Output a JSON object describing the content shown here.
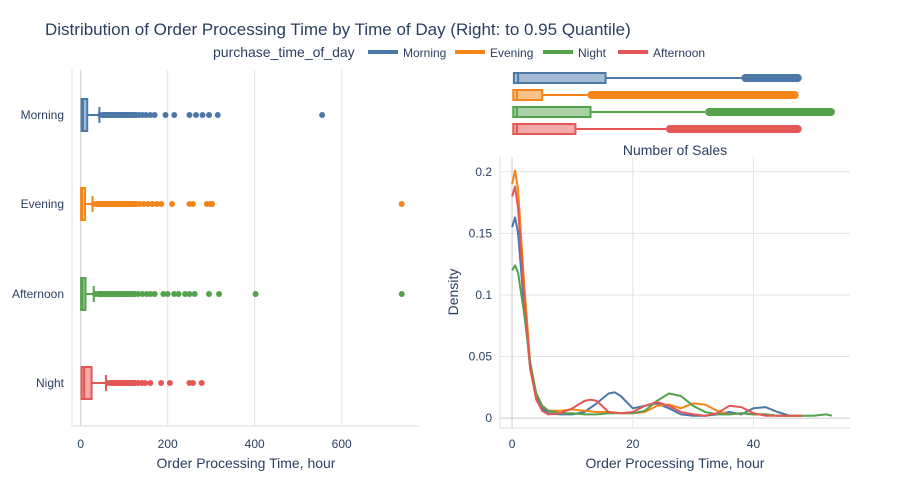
{
  "title": "Distribution of Order Processing Time by Time of Day (Right: to 0.95 Quantile)",
  "legend": {
    "title": "purchase_time_of_day",
    "items": [
      {
        "name": "Morning",
        "color": "#4c78a8"
      },
      {
        "name": "Evening",
        "color": "#f58518"
      },
      {
        "name": "Night",
        "color": "#54a24b"
      },
      {
        "name": "Afternoon",
        "color": "#e45756"
      }
    ]
  },
  "chart_data": [
    {
      "type": "box",
      "orientation": "horizontal",
      "xlabel": "Order Processing Time, hour",
      "ylabel": "",
      "xlim": [
        -20,
        780
      ],
      "xticks": [
        0,
        200,
        400,
        600
      ],
      "categories": [
        "Morning",
        "Evening",
        "Afternoon",
        "Night"
      ],
      "series": [
        {
          "name": "Morning",
          "color": "#4c78a8",
          "q1": 2,
          "median": 5,
          "q3": 15,
          "whisker_high": 43,
          "outliers": [
            45,
            52,
            60,
            68,
            75,
            82,
            90,
            98,
            105,
            112,
            120,
            128,
            135,
            142,
            150,
            160,
            170,
            195,
            215,
            250,
            265,
            280,
            295,
            315,
            555
          ]
        },
        {
          "name": "Evening",
          "color": "#f58518",
          "q1": 1,
          "median": 3,
          "q3": 10,
          "whisker_high": 27,
          "outliers": [
            30,
            38,
            45,
            55,
            65,
            75,
            85,
            95,
            105,
            115,
            125,
            135,
            145,
            155,
            165,
            175,
            185,
            210,
            250,
            258,
            290,
            298,
            302,
            738
          ]
        },
        {
          "name": "Afternoon",
          "color": "#54a24b",
          "q1": 1,
          "median": 4,
          "q3": 11,
          "whisker_high": 30,
          "outliers": [
            33,
            42,
            52,
            62,
            72,
            82,
            92,
            102,
            112,
            122,
            132,
            142,
            152,
            160,
            170,
            190,
            200,
            215,
            225,
            240,
            250,
            262,
            295,
            318,
            402,
            738
          ]
        },
        {
          "name": "Night",
          "color": "#e45756",
          "q1": 2,
          "median": 8,
          "q3": 25,
          "whisker_high": 58,
          "outliers": [
            62,
            70,
            78,
            85,
            92,
            100,
            108,
            116,
            124,
            132,
            140,
            148,
            160,
            185,
            205,
            250,
            258,
            278
          ]
        }
      ]
    },
    {
      "type": "box",
      "orientation": "horizontal",
      "title": "Number of Sales",
      "xlim": [
        -2,
        56
      ],
      "order_top_to_bottom": [
        "Morning",
        "Evening",
        "Night",
        "Afternoon"
      ],
      "series": [
        {
          "name": "Morning",
          "color": "#4c78a8",
          "q1": 0.3,
          "median": 1,
          "q3": 15.5,
          "whisker_high": 38,
          "outliers_from": 38,
          "outliers_to": 48
        },
        {
          "name": "Evening",
          "color": "#f58518",
          "q1": 0.2,
          "median": 0.8,
          "q3": 5,
          "whisker_high": 12.5,
          "outliers_from": 12.5,
          "outliers_to": 47.5
        },
        {
          "name": "Night",
          "color": "#54a24b",
          "q1": 0.2,
          "median": 0.8,
          "q3": 13,
          "whisker_high": 32,
          "outliers_from": 32,
          "outliers_to": 53.5
        },
        {
          "name": "Afternoon",
          "color": "#e45756",
          "q1": 0.2,
          "median": 0.8,
          "q3": 10.5,
          "whisker_high": 25.5,
          "outliers_from": 25.5,
          "outliers_to": 48
        }
      ]
    },
    {
      "type": "line",
      "xlabel": "Order Processing Time, hour",
      "ylabel": "Density",
      "xlim": [
        -2,
        56
      ],
      "ylim": [
        -0.008,
        0.212
      ],
      "xticks": [
        0,
        20,
        40
      ],
      "yticks": [
        0,
        0.05,
        0.1,
        0.15,
        0.2
      ],
      "series": [
        {
          "name": "Morning",
          "color": "#4c78a8",
          "x": [
            0,
            0.5,
            1,
            2,
            3,
            4,
            5,
            6,
            8,
            10,
            12,
            14,
            16,
            17,
            18,
            20,
            22,
            24,
            26,
            28,
            30,
            32,
            34,
            36,
            38,
            40,
            42,
            44,
            46,
            48
          ],
          "y": [
            0.155,
            0.163,
            0.15,
            0.09,
            0.04,
            0.018,
            0.008,
            0.004,
            0.003,
            0.003,
            0.005,
            0.012,
            0.02,
            0.021,
            0.018,
            0.008,
            0.01,
            0.012,
            0.008,
            0.003,
            0.002,
            0.002,
            0.003,
            0.005,
            0.003,
            0.008,
            0.009,
            0.005,
            0.002,
            0.002
          ]
        },
        {
          "name": "Evening",
          "color": "#f58518",
          "x": [
            0,
            0.5,
            1,
            2,
            3,
            4,
            5,
            6,
            8,
            10,
            12,
            14,
            16,
            18,
            20,
            22,
            24,
            26,
            28,
            30,
            32,
            34,
            36,
            38,
            40,
            42,
            44,
            46,
            48
          ],
          "y": [
            0.19,
            0.201,
            0.185,
            0.11,
            0.045,
            0.02,
            0.01,
            0.006,
            0.006,
            0.007,
            0.006,
            0.005,
            0.005,
            0.004,
            0.004,
            0.005,
            0.01,
            0.011,
            0.008,
            0.012,
            0.011,
            0.006,
            0.003,
            0.004,
            0.003,
            0.003,
            0.002,
            0.002,
            0.002
          ]
        },
        {
          "name": "Night",
          "color": "#54a24b",
          "x": [
            0,
            0.5,
            1,
            2,
            3,
            4,
            5,
            6,
            8,
            10,
            12,
            14,
            16,
            18,
            20,
            22,
            24,
            26,
            28,
            30,
            32,
            34,
            36,
            38,
            40,
            42,
            44,
            46,
            48,
            50,
            52,
            53
          ],
          "y": [
            0.12,
            0.124,
            0.118,
            0.085,
            0.045,
            0.02,
            0.01,
            0.006,
            0.004,
            0.004,
            0.003,
            0.003,
            0.004,
            0.004,
            0.004,
            0.006,
            0.014,
            0.02,
            0.018,
            0.01,
            0.005,
            0.003,
            0.003,
            0.004,
            0.003,
            0.003,
            0.002,
            0.002,
            0.002,
            0.002,
            0.003,
            0.002
          ]
        },
        {
          "name": "Afternoon",
          "color": "#e45756",
          "x": [
            0,
            0.5,
            1,
            2,
            3,
            4,
            5,
            6,
            8,
            10,
            12,
            13,
            14,
            16,
            18,
            20,
            22,
            24,
            26,
            28,
            30,
            32,
            34,
            36,
            38,
            40,
            42,
            44,
            46,
            48
          ],
          "y": [
            0.18,
            0.188,
            0.17,
            0.1,
            0.04,
            0.015,
            0.006,
            0.003,
            0.004,
            0.008,
            0.014,
            0.015,
            0.014,
            0.005,
            0.004,
            0.005,
            0.01,
            0.013,
            0.01,
            0.005,
            0.003,
            0.002,
            0.004,
            0.01,
            0.009,
            0.004,
            0.002,
            0.002,
            0.002,
            0.002
          ]
        }
      ]
    }
  ]
}
